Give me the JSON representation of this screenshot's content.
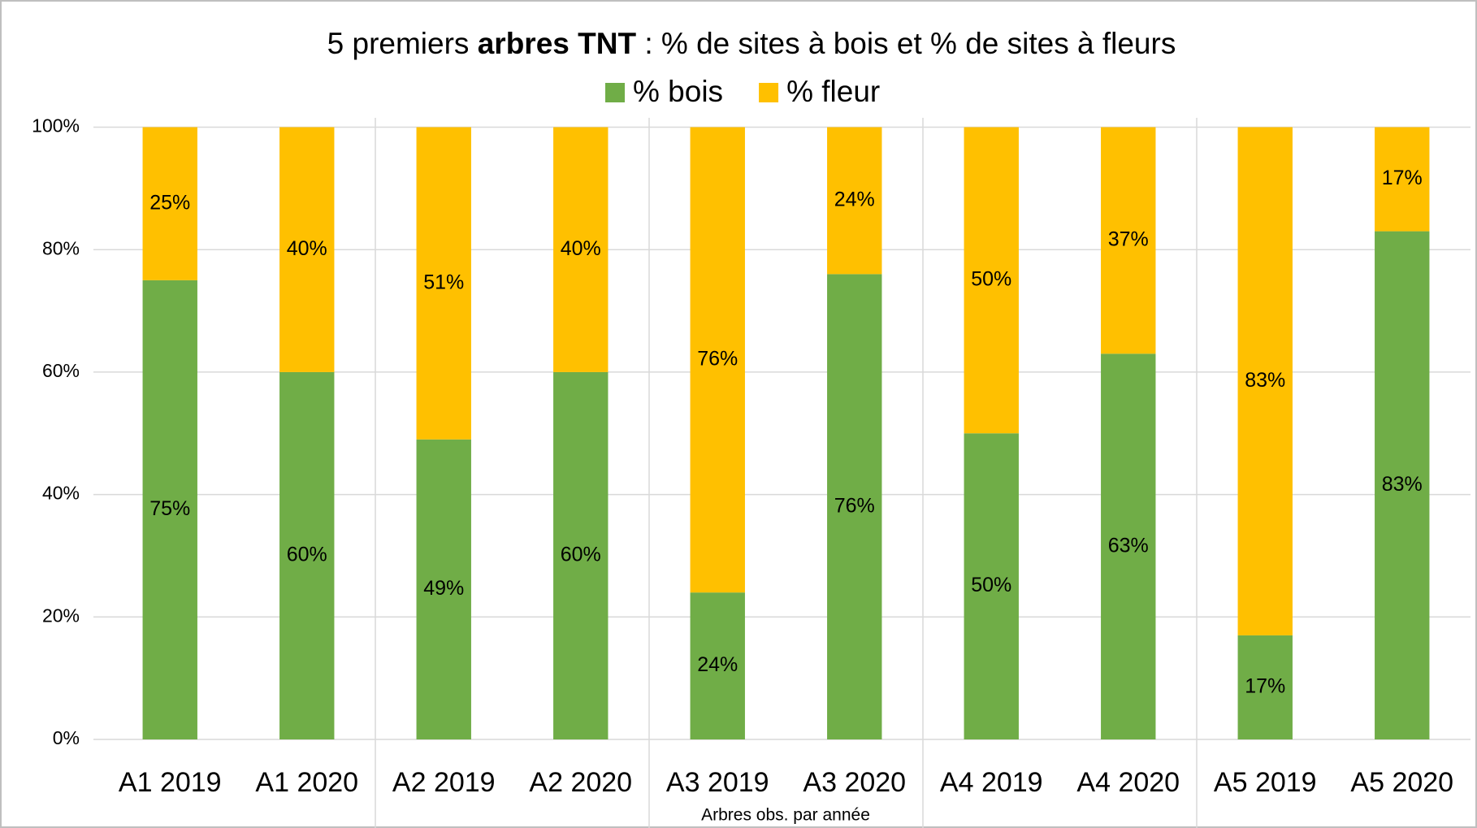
{
  "chart_data": {
    "type": "stacked_bar",
    "title": [
      "5 premiers ",
      "arbres TNT",
      " : % de sites à bois et % de sites à fleurs"
    ],
    "x_label": "Arbres obs. par année",
    "categories": [
      "A1 2019",
      "A1 2020",
      "A2 2019",
      "A2 2020",
      "A3 2019",
      "A3 2020",
      "A4 2019",
      "A4 2020",
      "A5 2019",
      "A5 2020"
    ],
    "series": [
      {
        "name": "% bois",
        "color": "#70ad47",
        "values": [
          75,
          60,
          49,
          60,
          24,
          76,
          50,
          63,
          17,
          83
        ],
        "value_labels": [
          "75%",
          "60%",
          "49%",
          "60%",
          "24%",
          "76%",
          "50%",
          "63%",
          "17%",
          "83%"
        ]
      },
      {
        "name": "% fleur",
        "color": "#ffc000",
        "values": [
          25,
          40,
          51,
          40,
          76,
          24,
          50,
          37,
          83,
          17
        ],
        "value_labels": [
          "25%",
          "40%",
          "51%",
          "40%",
          "76%",
          "24%",
          "50%",
          "37%",
          "83%",
          "17%"
        ]
      }
    ],
    "ylim": [
      0,
      100
    ],
    "yticks": [
      {
        "value": 0,
        "label": "0%"
      },
      {
        "value": 20,
        "label": "20%"
      },
      {
        "value": 40,
        "label": "40%"
      },
      {
        "value": 60,
        "label": "60%"
      },
      {
        "value": 80,
        "label": "80%"
      },
      {
        "value": 100,
        "label": "100%"
      }
    ],
    "grid": true,
    "legend": "top"
  }
}
